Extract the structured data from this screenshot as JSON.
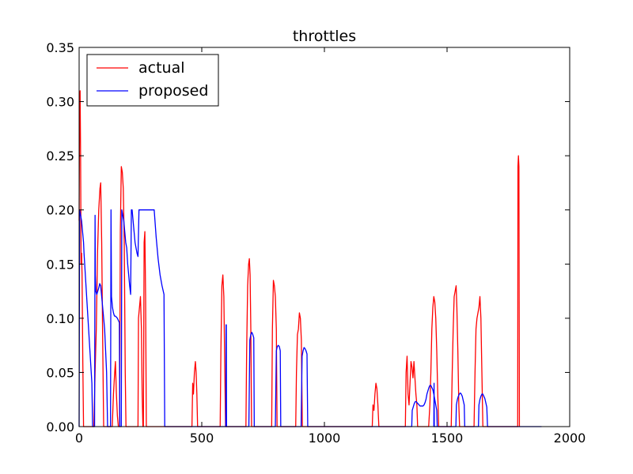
{
  "chart_data": {
    "type": "line",
    "title": "throttles",
    "xlabel": "",
    "ylabel": "",
    "xlim": [
      0,
      2000
    ],
    "ylim": [
      0,
      0.35
    ],
    "xticks": [
      0,
      500,
      1000,
      1500,
      2000
    ],
    "xtick_labels": [
      "0",
      "500",
      "1000",
      "1500",
      "2000"
    ],
    "yticks": [
      0.0,
      0.05,
      0.1,
      0.15,
      0.2,
      0.25,
      0.3,
      0.35
    ],
    "ytick_labels": [
      "0.00",
      "0.05",
      "0.10",
      "0.15",
      "0.20",
      "0.25",
      "0.30",
      "0.35"
    ],
    "grid": false,
    "legend_position": "top-left",
    "series": [
      {
        "name": "actual",
        "color": "#ff0000",
        "points": [
          [
            0,
            0.19
          ],
          [
            2,
            0.3
          ],
          [
            4,
            0.31
          ],
          [
            6,
            0.25
          ],
          [
            8,
            0.15
          ],
          [
            10,
            0.16
          ],
          [
            12,
            0.14
          ],
          [
            15,
            0.06
          ],
          [
            18,
            0
          ],
          [
            60,
            0
          ],
          [
            65,
            0.05
          ],
          [
            70,
            0.09
          ],
          [
            75,
            0.16
          ],
          [
            80,
            0.2
          ],
          [
            85,
            0.22
          ],
          [
            88,
            0.225
          ],
          [
            92,
            0.17
          ],
          [
            96,
            0.08
          ],
          [
            100,
            0
          ],
          [
            135,
            0
          ],
          [
            140,
            0.03
          ],
          [
            145,
            0.05
          ],
          [
            148,
            0.06
          ],
          [
            152,
            0.03
          ],
          [
            156,
            0.01
          ],
          [
            160,
            0
          ],
          [
            165,
            0
          ],
          [
            168,
            0.18
          ],
          [
            172,
            0.24
          ],
          [
            176,
            0.235
          ],
          [
            180,
            0.22
          ],
          [
            184,
            0.17
          ],
          [
            188,
            0.05
          ],
          [
            191,
            0
          ],
          [
            240,
            0
          ],
          [
            242,
            0.1
          ],
          [
            246,
            0.11
          ],
          [
            250,
            0.12
          ],
          [
            254,
            0.09
          ],
          [
            257,
            0.03
          ],
          [
            260,
            0
          ],
          [
            262,
            0
          ],
          [
            265,
            0.17
          ],
          [
            268,
            0.18
          ],
          [
            271,
            0.12
          ],
          [
            274,
            0
          ],
          [
            460,
            0
          ],
          [
            463,
            0.04
          ],
          [
            466,
            0.03
          ],
          [
            470,
            0.05
          ],
          [
            474,
            0.06
          ],
          [
            477,
            0.05
          ],
          [
            480,
            0.03
          ],
          [
            483,
            0
          ],
          [
            575,
            0
          ],
          [
            578,
            0.07
          ],
          [
            582,
            0.13
          ],
          [
            586,
            0.14
          ],
          [
            590,
            0.12
          ],
          [
            594,
            0.05
          ],
          [
            597,
            0
          ],
          [
            680,
            0
          ],
          [
            683,
            0.07
          ],
          [
            687,
            0.13
          ],
          [
            691,
            0.15
          ],
          [
            694,
            0.155
          ],
          [
            697,
            0.14
          ],
          [
            700,
            0.09
          ],
          [
            703,
            0
          ],
          [
            785,
            0
          ],
          [
            788,
            0.09
          ],
          [
            792,
            0.135
          ],
          [
            796,
            0.13
          ],
          [
            800,
            0.12
          ],
          [
            804,
            0.09
          ],
          [
            807,
            0
          ],
          [
            883,
            0
          ],
          [
            886,
            0.05
          ],
          [
            890,
            0.085
          ],
          [
            894,
            0.09
          ],
          [
            898,
            0.105
          ],
          [
            902,
            0.1
          ],
          [
            906,
            0.08
          ],
          [
            910,
            0
          ],
          [
            1195,
            0
          ],
          [
            1198,
            0.02
          ],
          [
            1202,
            0.015
          ],
          [
            1206,
            0.03
          ],
          [
            1210,
            0.04
          ],
          [
            1214,
            0.035
          ],
          [
            1218,
            0.02
          ],
          [
            1222,
            0
          ],
          [
            1330,
            0
          ],
          [
            1333,
            0.05
          ],
          [
            1337,
            0.065
          ],
          [
            1341,
            0.03
          ],
          [
            1345,
            0.02
          ],
          [
            1349,
            0.04
          ],
          [
            1353,
            0.06
          ],
          [
            1357,
            0.055
          ],
          [
            1361,
            0.045
          ],
          [
            1365,
            0.06
          ],
          [
            1369,
            0.045
          ],
          [
            1373,
            0.03
          ],
          [
            1377,
            0.02
          ],
          [
            1380,
            0
          ],
          [
            1425,
            0
          ],
          [
            1430,
            0.02
          ],
          [
            1434,
            0.05
          ],
          [
            1438,
            0.09
          ],
          [
            1442,
            0.11
          ],
          [
            1446,
            0.12
          ],
          [
            1450,
            0.115
          ],
          [
            1454,
            0.1
          ],
          [
            1458,
            0.07
          ],
          [
            1462,
            0.03
          ],
          [
            1466,
            0
          ],
          [
            1517,
            0
          ],
          [
            1521,
            0.05
          ],
          [
            1525,
            0.09
          ],
          [
            1529,
            0.12
          ],
          [
            1533,
            0.125
          ],
          [
            1537,
            0.13
          ],
          [
            1540,
            0.11
          ],
          [
            1544,
            0.07
          ],
          [
            1548,
            0.02
          ],
          [
            1551,
            0
          ],
          [
            1610,
            0
          ],
          [
            1614,
            0.05
          ],
          [
            1618,
            0.09
          ],
          [
            1622,
            0.1
          ],
          [
            1626,
            0.105
          ],
          [
            1630,
            0.11
          ],
          [
            1634,
            0.12
          ],
          [
            1638,
            0.1
          ],
          [
            1642,
            0.05
          ],
          [
            1646,
            0
          ],
          [
            1788,
            0
          ],
          [
            1789,
            0.24
          ],
          [
            1791,
            0.25
          ],
          [
            1793,
            0.24
          ],
          [
            1795,
            0
          ]
        ]
      },
      {
        "name": "proposed",
        "color": "#0000ff",
        "points": [
          [
            0,
            0
          ],
          [
            2,
            0.2
          ],
          [
            6,
            0.195
          ],
          [
            10,
            0.19
          ],
          [
            14,
            0.18
          ],
          [
            18,
            0.17
          ],
          [
            20,
            0.16
          ],
          [
            24,
            0.145
          ],
          [
            28,
            0.13
          ],
          [
            32,
            0.115
          ],
          [
            36,
            0.1
          ],
          [
            40,
            0.085
          ],
          [
            44,
            0.07
          ],
          [
            48,
            0.055
          ],
          [
            52,
            0.04
          ],
          [
            55,
            0
          ],
          [
            63,
            0
          ],
          [
            65,
            0.195
          ],
          [
            66,
            0.14
          ],
          [
            68,
            0.125
          ],
          [
            72,
            0.122
          ],
          [
            76,
            0.125
          ],
          [
            80,
            0.128
          ],
          [
            84,
            0.132
          ],
          [
            88,
            0.13
          ],
          [
            92,
            0.12
          ],
          [
            96,
            0.11
          ],
          [
            100,
            0.1
          ],
          [
            104,
            0.09
          ],
          [
            108,
            0.07
          ],
          [
            112,
            0.05
          ],
          [
            116,
            0
          ],
          [
            128,
            0
          ],
          [
            130,
            0.2
          ],
          [
            132,
            0.12
          ],
          [
            136,
            0.11
          ],
          [
            140,
            0.105
          ],
          [
            144,
            0.102
          ],
          [
            148,
            0.102
          ],
          [
            152,
            0.101
          ],
          [
            156,
            0.1
          ],
          [
            160,
            0.098
          ],
          [
            164,
            0.096
          ],
          [
            166,
            0
          ],
          [
            172,
            0
          ],
          [
            174,
            0.2
          ],
          [
            178,
            0.195
          ],
          [
            182,
            0.19
          ],
          [
            186,
            0.18
          ],
          [
            190,
            0.17
          ],
          [
            194,
            0.165
          ],
          [
            198,
            0.15
          ],
          [
            202,
            0.14
          ],
          [
            206,
            0.13
          ],
          [
            210,
            0.122
          ],
          [
            213,
            0.2
          ],
          [
            216,
            0.2
          ],
          [
            220,
            0.19
          ],
          [
            224,
            0.18
          ],
          [
            228,
            0.17
          ],
          [
            232,
            0.165
          ],
          [
            236,
            0.16
          ],
          [
            240,
            0.157
          ],
          [
            244,
            0.2
          ],
          [
            252,
            0.2
          ],
          [
            262,
            0.2
          ],
          [
            272,
            0.2
          ],
          [
            282,
            0.2
          ],
          [
            290,
            0.2
          ],
          [
            298,
            0.2
          ],
          [
            306,
            0.2
          ],
          [
            314,
            0.175
          ],
          [
            322,
            0.155
          ],
          [
            330,
            0.14
          ],
          [
            338,
            0.13
          ],
          [
            346,
            0.122
          ],
          [
            349,
            0
          ],
          [
            598,
            0
          ],
          [
            599,
            0.094
          ],
          [
            600,
            0.094
          ],
          [
            601,
            0
          ],
          [
            692,
            0
          ],
          [
            696,
            0.08
          ],
          [
            700,
            0.085
          ],
          [
            704,
            0.087
          ],
          [
            708,
            0.085
          ],
          [
            712,
            0.082
          ],
          [
            714,
            0
          ],
          [
            800,
            0
          ],
          [
            804,
            0.07
          ],
          [
            808,
            0.074
          ],
          [
            812,
            0.075
          ],
          [
            816,
            0.074
          ],
          [
            820,
            0.07
          ],
          [
            822,
            0
          ],
          [
            905,
            0
          ],
          [
            909,
            0.065
          ],
          [
            913,
            0.07
          ],
          [
            917,
            0.073
          ],
          [
            921,
            0.072
          ],
          [
            925,
            0.07
          ],
          [
            929,
            0.067
          ],
          [
            932,
            0
          ],
          [
            1356,
            0
          ],
          [
            1358,
            0.015
          ],
          [
            1362,
            0.018
          ],
          [
            1366,
            0.021
          ],
          [
            1370,
            0.023
          ],
          [
            1374,
            0.023
          ],
          [
            1378,
            0.022
          ],
          [
            1382,
            0.021
          ],
          [
            1386,
            0.02
          ],
          [
            1390,
            0.019
          ],
          [
            1394,
            0.019
          ],
          [
            1398,
            0.019
          ],
          [
            1402,
            0.019
          ],
          [
            1406,
            0.02
          ],
          [
            1410,
            0.022
          ],
          [
            1414,
            0.025
          ],
          [
            1418,
            0.03
          ],
          [
            1422,
            0.033
          ],
          [
            1426,
            0.036
          ],
          [
            1430,
            0.038
          ],
          [
            1434,
            0.038
          ],
          [
            1438,
            0.036
          ],
          [
            1442,
            0.034
          ],
          [
            1446,
            0.03
          ],
          [
            1450,
            0.025
          ],
          [
            1454,
            0.02
          ],
          [
            1458,
            0.015
          ],
          [
            1460,
            0
          ],
          [
            1446,
            0
          ],
          [
            1447,
            0.04
          ],
          [
            1448,
            0
          ],
          [
            1536,
            0
          ],
          [
            1538,
            0.02
          ],
          [
            1542,
            0.025
          ],
          [
            1546,
            0.028
          ],
          [
            1550,
            0.03
          ],
          [
            1554,
            0.031
          ],
          [
            1558,
            0.03
          ],
          [
            1562,
            0.028
          ],
          [
            1566,
            0.024
          ],
          [
            1570,
            0.02
          ],
          [
            1572,
            0
          ],
          [
            1628,
            0
          ],
          [
            1630,
            0.02
          ],
          [
            1634,
            0.025
          ],
          [
            1638,
            0.028
          ],
          [
            1642,
            0.03
          ],
          [
            1646,
            0.03
          ],
          [
            1650,
            0.028
          ],
          [
            1654,
            0.026
          ],
          [
            1658,
            0.022
          ],
          [
            1662,
            0.018
          ],
          [
            1665,
            0
          ],
          [
            1885,
            0
          ]
        ]
      }
    ]
  }
}
